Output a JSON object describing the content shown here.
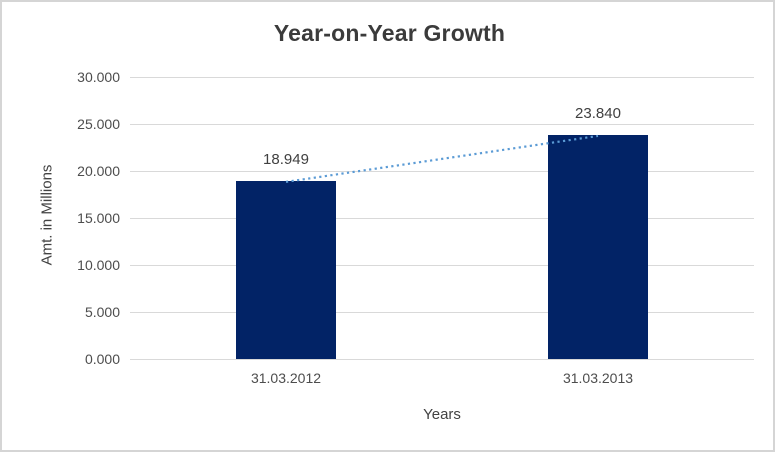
{
  "chart_data": {
    "type": "bar",
    "title": "Year-on-Year Growth",
    "xlabel": "Years",
    "ylabel": "Amt. in Millions",
    "categories": [
      "31.03.2012",
      "31.03.2013"
    ],
    "values": [
      18949,
      23840
    ],
    "value_labels": [
      "18.949",
      "23.840"
    ],
    "ylim": [
      0,
      30000
    ],
    "ytick_step": 5000,
    "ytick_labels": [
      "0.000",
      "5.000",
      "10.000",
      "15.000",
      "20.000",
      "25.000",
      "30.000"
    ],
    "grid": true,
    "legend": "none",
    "trendline": {
      "style": "dotted",
      "connects": "bar-top-centers",
      "color": "#5B9BD5"
    },
    "colors": {
      "bar": "#022366",
      "gridline": "#d9d9d9",
      "title_text": "#3b3b3b",
      "axis_text": "#4d4d4d",
      "frame_border": "#d5d5d5"
    }
  }
}
